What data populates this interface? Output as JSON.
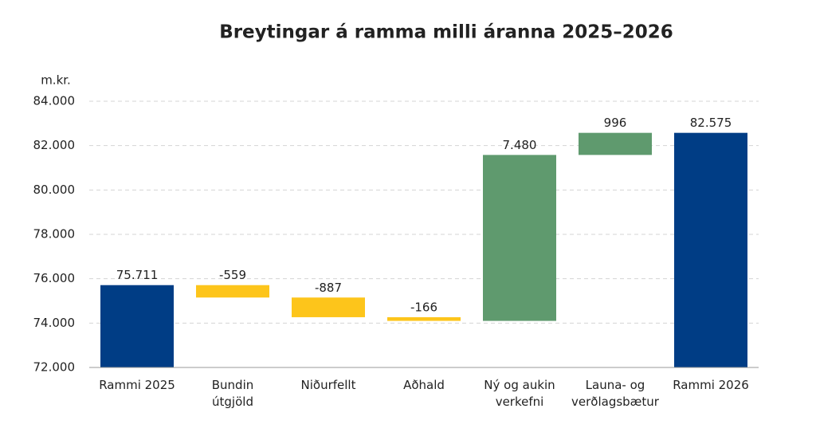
{
  "chart_data": {
    "type": "waterfall",
    "title": "Breytingar á ramma milli áranna 2025–2026",
    "y_label": "m.kr.",
    "categories": [
      "Rammi 2025",
      "Bundin\nútgjöld",
      "Niðurfellt",
      "Aðhald",
      "Ný og aukin\nverkefni",
      "Launa- og\nverðlagsbætur",
      "Rammi 2026"
    ],
    "values": [
      75711,
      -559,
      -887,
      -166,
      7480,
      996,
      82575
    ],
    "value_labels": [
      "75.711",
      "-559",
      "-887",
      "-166",
      "7.480",
      "996",
      "82.575"
    ],
    "totals": [
      true,
      false,
      false,
      false,
      false,
      false,
      true
    ],
    "colors": [
      "#003d85",
      "#fdc51b",
      "#fdc51b",
      "#fdc51b",
      "#5f9a6e",
      "#5f9a6e",
      "#003d85"
    ],
    "ylim": [
      72000,
      84000
    ],
    "yticks": [
      {
        "value": 72000,
        "label": "72.000"
      },
      {
        "value": 74000,
        "label": "74.000"
      },
      {
        "value": 76000,
        "label": "76.000"
      },
      {
        "value": 78000,
        "label": "78.000"
      },
      {
        "value": 80000,
        "label": "80.000"
      },
      {
        "value": 82000,
        "label": "82.000"
      },
      {
        "value": 84000,
        "label": "84.000"
      }
    ],
    "grid": true
  }
}
